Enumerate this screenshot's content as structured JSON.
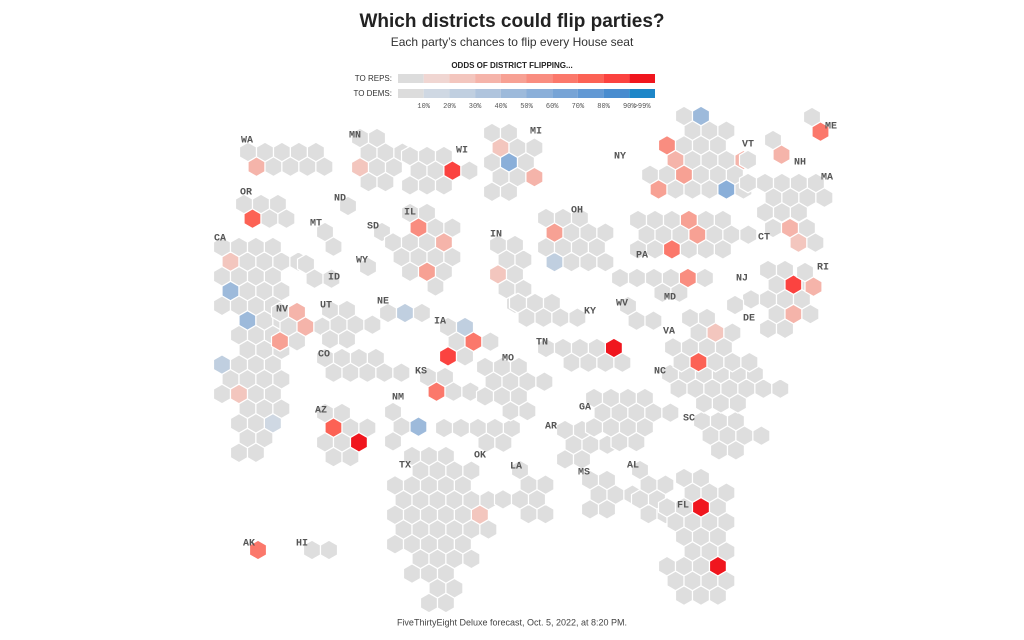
{
  "title": "Which districts could flip parties?",
  "subtitle": "Each party’s chances to flip every House seat",
  "legend": {
    "heading": "ODDS OF DISTRICT FLIPPING...",
    "reps_label": "TO REPS:",
    "dems_label": "TO DEMS:",
    "reps_colors": [
      "#dcdcdc",
      "#f0d6d2",
      "#f3c6be",
      "#f5b4aa",
      "#f7a194",
      "#f98d80",
      "#fb786b",
      "#fc6255",
      "#fb4340",
      "#f0161e"
    ],
    "dems_colors": [
      "#dcdcdc",
      "#cfd8e3",
      "#c0cfe0",
      "#afc4dd",
      "#9dbadb",
      "#8aafd9",
      "#77a4d6",
      "#6299d4",
      "#488ccf",
      "#1d86c8"
    ],
    "ticks": [
      {
        "value": 10,
        "label": "10%"
      },
      {
        "value": 20,
        "label": "20%"
      },
      {
        "value": 30,
        "label": "30%"
      },
      {
        "value": 40,
        "label": "40%"
      },
      {
        "value": 50,
        "label": "50%"
      },
      {
        "value": 60,
        "label": "60%"
      },
      {
        "value": 70,
        "label": "70%"
      },
      {
        "value": 80,
        "label": "80%"
      },
      {
        "value": 90,
        "label": "90%"
      },
      {
        "value": 99,
        "label": ">99%"
      }
    ]
  },
  "states": [
    {
      "label": "WA",
      "flips": [
        {
          "to": "reps",
          "odds": 30
        }
      ]
    },
    {
      "label": "OR",
      "flips": [
        {
          "to": "reps",
          "odds": 70
        }
      ]
    },
    {
      "label": "CA",
      "flips": [
        {
          "to": "reps",
          "odds": 20
        },
        {
          "to": "dems",
          "odds": 40
        },
        {
          "to": "dems",
          "odds": 40
        },
        {
          "to": "dems",
          "odds": 20
        },
        {
          "to": "reps",
          "odds": 20
        },
        {
          "to": "dems",
          "odds": 15
        }
      ]
    },
    {
      "label": "ID",
      "flips": []
    },
    {
      "label": "NV",
      "flips": [
        {
          "to": "reps",
          "odds": 30
        },
        {
          "to": "reps",
          "odds": 30
        },
        {
          "to": "reps",
          "odds": 40
        }
      ]
    },
    {
      "label": "MT",
      "flips": []
    },
    {
      "label": "WY",
      "flips": []
    },
    {
      "label": "UT",
      "flips": []
    },
    {
      "label": "CO",
      "flips": []
    },
    {
      "label": "AZ",
      "flips": [
        {
          "to": "reps",
          "odds": 70
        },
        {
          "to": "reps",
          "odds": 99
        }
      ]
    },
    {
      "label": "NM",
      "flips": [
        {
          "to": "dems",
          "odds": 45
        }
      ]
    },
    {
      "label": "ND",
      "flips": []
    },
    {
      "label": "SD",
      "flips": []
    },
    {
      "label": "NE",
      "flips": [
        {
          "to": "dems",
          "odds": 20
        }
      ]
    },
    {
      "label": "KS",
      "flips": [
        {
          "to": "reps",
          "odds": 60
        }
      ]
    },
    {
      "label": "OK",
      "flips": []
    },
    {
      "label": "TX",
      "flips": [
        {
          "to": "reps",
          "odds": 20
        }
      ]
    },
    {
      "label": "MN",
      "flips": [
        {
          "to": "reps",
          "odds": 20
        }
      ]
    },
    {
      "label": "WI",
      "flips": [
        {
          "to": "reps",
          "odds": 80
        }
      ]
    },
    {
      "label": "IA",
      "flips": [
        {
          "to": "dems",
          "odds": 20
        },
        {
          "to": "reps",
          "odds": 60
        },
        {
          "to": "reps",
          "odds": 80
        }
      ]
    },
    {
      "label": "MO",
      "flips": []
    },
    {
      "label": "AR",
      "flips": []
    },
    {
      "label": "LA",
      "flips": []
    },
    {
      "label": "IL",
      "flips": [
        {
          "to": "reps",
          "odds": 50
        },
        {
          "to": "reps",
          "odds": 30
        },
        {
          "to": "reps",
          "odds": 40
        }
      ]
    },
    {
      "label": "MI",
      "flips": [
        {
          "to": "reps",
          "odds": 20
        },
        {
          "to": "dems",
          "odds": 50
        },
        {
          "to": "reps",
          "odds": 30
        }
      ]
    },
    {
      "label": "IN",
      "flips": [
        {
          "to": "reps",
          "odds": 20
        }
      ]
    },
    {
      "label": "OH",
      "flips": [
        {
          "to": "reps",
          "odds": 40
        },
        {
          "to": "dems",
          "odds": 20
        }
      ]
    },
    {
      "label": "KY",
      "flips": []
    },
    {
      "label": "TN",
      "flips": [
        {
          "to": "reps",
          "odds": 99
        }
      ]
    },
    {
      "label": "MS",
      "flips": []
    },
    {
      "label": "AL",
      "flips": []
    },
    {
      "label": "GA",
      "flips": []
    },
    {
      "label": "FL",
      "flips": [
        {
          "to": "reps",
          "odds": 99
        },
        {
          "to": "reps",
          "odds": 99
        }
      ]
    },
    {
      "label": "SC",
      "flips": []
    },
    {
      "label": "NC",
      "flips": []
    },
    {
      "label": "VA",
      "flips": [
        {
          "to": "reps",
          "odds": 20
        },
        {
          "to": "reps",
          "odds": 70
        }
      ]
    },
    {
      "label": "WV",
      "flips": []
    },
    {
      "label": "PA",
      "flips": [
        {
          "to": "reps",
          "odds": 40
        },
        {
          "to": "reps",
          "odds": 40
        },
        {
          "to": "reps",
          "odds": 60
        }
      ]
    },
    {
      "label": "MD",
      "flips": [
        {
          "to": "reps",
          "odds": 50
        }
      ]
    },
    {
      "label": "NJ",
      "flips": [
        {
          "to": "reps",
          "odds": 80
        },
        {
          "to": "reps",
          "odds": 30
        }
      ]
    },
    {
      "label": "DE",
      "flips": []
    },
    {
      "label": "NY",
      "flips": [
        {
          "to": "dems",
          "odds": 40
        },
        {
          "to": "reps",
          "odds": 50
        },
        {
          "to": "reps",
          "odds": 30
        },
        {
          "to": "reps",
          "odds": 30
        },
        {
          "to": "reps",
          "odds": 40
        },
        {
          "to": "reps",
          "odds": 40
        },
        {
          "to": "dems",
          "odds": 50
        }
      ]
    },
    {
      "label": "CT",
      "flips": [
        {
          "to": "reps",
          "odds": 30
        },
        {
          "to": "reps",
          "odds": 20
        }
      ]
    },
    {
      "label": "RI",
      "flips": [
        {
          "to": "reps",
          "odds": 30
        }
      ]
    },
    {
      "label": "MA",
      "flips": []
    },
    {
      "label": "VT",
      "flips": []
    },
    {
      "label": "NH",
      "flips": [
        {
          "to": "reps",
          "odds": 30
        }
      ]
    },
    {
      "label": "ME",
      "flips": [
        {
          "to": "reps",
          "odds": 60
        }
      ]
    },
    {
      "label": "AK",
      "flips": [
        {
          "to": "reps",
          "odds": 60
        }
      ]
    },
    {
      "label": "HI",
      "flips": []
    }
  ],
  "footer": "FiveThirtyEight Deluxe forecast, Oct. 5, 2022, at 8:20 PM."
}
